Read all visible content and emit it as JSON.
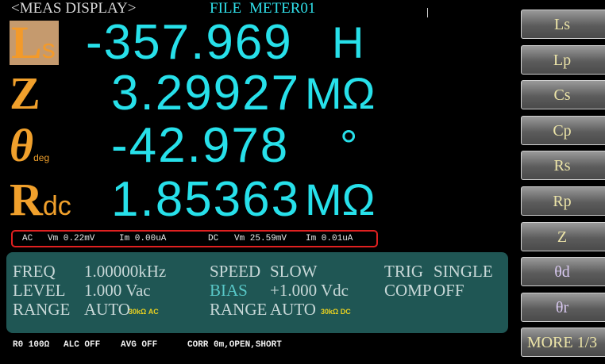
{
  "header": {
    "title": "<MEAS DISPLAY>",
    "file_label": "FILE",
    "file_name": "METER01"
  },
  "measurements": [
    {
      "label": "L",
      "sub": "s",
      "value": "-357.969",
      "unit": "H"
    },
    {
      "label": "Z",
      "value": "3.29927",
      "unit": "MΩ"
    },
    {
      "label": "θ",
      "sub": "deg",
      "value": "-42.978",
      "unit": "°"
    },
    {
      "label": "R",
      "sub": "dc",
      "value": "1.85363",
      "unit": "MΩ"
    }
  ],
  "status": {
    "ac": "AC",
    "ac_vm": "Vm 0.22mV",
    "ac_im": "Im 0.00uA",
    "dc": "DC",
    "dc_vm": "Vm 25.59mV",
    "dc_im": "Im 0.01uA"
  },
  "settings": {
    "rows": [
      [
        {
          "label": "FREQ",
          "value": "1.00000kHz"
        },
        {
          "label": "SPEED",
          "value": "SLOW"
        },
        {
          "label": "TRIG",
          "value": "SINGLE"
        }
      ],
      [
        {
          "label": "LEVEL",
          "value": "1.000 Vac"
        },
        {
          "label": "BIAS",
          "value": "+1.000 Vdc"
        },
        {
          "label": "COMP",
          "value": "OFF"
        }
      ],
      [
        {
          "label": "RANGE",
          "value": "AUTO",
          "note": "30kΩ AC"
        },
        {
          "label": "RANGE",
          "value": "AUTO",
          "note": "30kΩ DC"
        }
      ]
    ]
  },
  "footer": [
    "R0 100Ω",
    "ALC OFF",
    "AVG OFF",
    "CORR 0m,OPEN,SHORT"
  ],
  "softkeys": [
    "Ls",
    "Lp",
    "Cs",
    "Cp",
    "Rs",
    "Rp",
    "Z",
    "θd",
    "θr",
    "MORE 1/3"
  ]
}
